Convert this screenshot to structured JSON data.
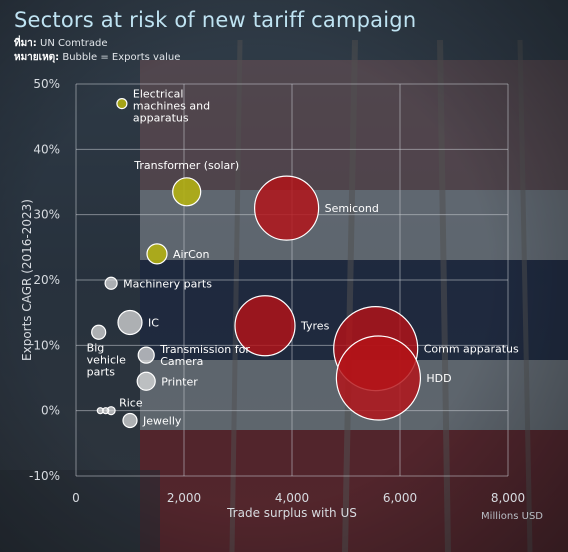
{
  "header": {
    "title": "Sectors at risk of new tariff campaign",
    "source_label": "ที่มา:",
    "source_value": "UN Comtrade",
    "note_label": "หมายเหตุ:",
    "note_value": "Bubble = Exports value"
  },
  "colors": {
    "title": "#bfe3f2",
    "red": "#b51217",
    "olive": "#b2b013",
    "white": "#e6e6e6",
    "grid": "#c8ccd2"
  },
  "chart_data": {
    "type": "scatter",
    "title": "Sectors at risk of new tariff campaign",
    "xlabel": "Trade surplus with US",
    "ylabel": "Exports CAGR (2016-2023)",
    "x_unit": "Millions USD",
    "xlim": [
      0,
      8000
    ],
    "ylim": [
      -10,
      50
    ],
    "x_ticks": [
      "0",
      "2,000",
      "4,000",
      "6,000",
      "8,000"
    ],
    "y_ticks": [
      "50%",
      "40%",
      "30%",
      "20%",
      "10%",
      "0%",
      "-10%"
    ],
    "grid": true,
    "points": [
      {
        "label": "Electrical machines and apparatus",
        "lines": [
          "Electrical",
          "machines and",
          "apparatus"
        ],
        "x": 850,
        "y": 47,
        "r": 5,
        "color": "olive",
        "label_pos": "right"
      },
      {
        "label": "Transformer (solar)",
        "lines": [
          "Transformer (solar)"
        ],
        "x": 2050,
        "y": 33.5,
        "r": 14,
        "color": "olive",
        "label_pos": "above"
      },
      {
        "label": "AirCon",
        "lines": [
          "AirCon"
        ],
        "x": 1500,
        "y": 24,
        "r": 10,
        "color": "olive",
        "label_pos": "right"
      },
      {
        "label": "Semicond",
        "lines": [
          "Semicond"
        ],
        "x": 3900,
        "y": 31,
        "r": 32,
        "color": "red",
        "label_pos": "right"
      },
      {
        "label": "Machinery parts",
        "lines": [
          "Machinery parts"
        ],
        "x": 650,
        "y": 19.5,
        "r": 6,
        "color": "white",
        "label_pos": "right"
      },
      {
        "label": "IC",
        "lines": [
          "IC"
        ],
        "x": 1000,
        "y": 13.5,
        "r": 12,
        "color": "white",
        "label_pos": "right"
      },
      {
        "label": "Big vehicle parts",
        "lines": [
          "Big",
          "vehicle",
          "parts"
        ],
        "x": 420,
        "y": 12,
        "r": 7,
        "color": "white",
        "label_pos": "below"
      },
      {
        "label": "Tyres",
        "lines": [
          "Tyres"
        ],
        "x": 3500,
        "y": 13,
        "r": 30,
        "color": "red",
        "label_pos": "right"
      },
      {
        "label": "Transmission for Camera",
        "lines": [
          "Transmission for",
          "Camera"
        ],
        "x": 1300,
        "y": 8.5,
        "r": 8,
        "color": "white",
        "label_pos": "right"
      },
      {
        "label": "Printer",
        "lines": [
          "Printer"
        ],
        "x": 1300,
        "y": 4.5,
        "r": 9,
        "color": "white",
        "label_pos": "right"
      },
      {
        "label": "Comm apparatus",
        "lines": [
          "Comm apparatus"
        ],
        "x": 5550,
        "y": 9.5,
        "r": 42,
        "color": "red",
        "label_pos": "right"
      },
      {
        "label": "HDD",
        "lines": [
          "HDD"
        ],
        "x": 5600,
        "y": 5,
        "r": 42,
        "color": "red",
        "label_pos": "right"
      },
      {
        "label": "Rice",
        "lines": [
          "Rice"
        ],
        "x": 650,
        "y": 0,
        "r": 4,
        "color": "white",
        "label_pos": "above"
      },
      {
        "label": "",
        "lines": [],
        "x": 450,
        "y": 0,
        "r": 3,
        "color": "white",
        "label_pos": "none"
      },
      {
        "label": "",
        "lines": [],
        "x": 550,
        "y": 0,
        "r": 3,
        "color": "white",
        "label_pos": "none"
      },
      {
        "label": "Jewelly",
        "lines": [
          "Jewelly"
        ],
        "x": 1000,
        "y": -1.5,
        "r": 7,
        "color": "white",
        "label_pos": "right"
      }
    ]
  }
}
